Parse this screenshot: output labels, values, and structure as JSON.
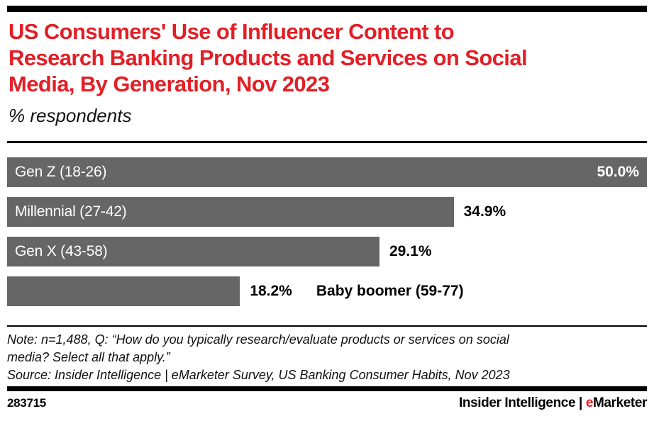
{
  "header": {
    "title_lines": [
      "US Consumers' Use of Influencer Content to",
      "Research Banking Products and Services on Social",
      "Media, By Generation, Nov 2023"
    ],
    "subtitle": "% respondents"
  },
  "chart_data": {
    "type": "bar",
    "orientation": "horizontal",
    "title": "US Consumers' Use of Influencer Content to Research Banking Products and Services on Social Media, By Generation, Nov 2023",
    "unit_label": "% respondents",
    "categories": [
      "Gen Z (18-26)",
      "Millennial (27-42)",
      "Gen X (43-58)",
      "Baby boomer (59-77)"
    ],
    "values": [
      50.0,
      34.9,
      29.1,
      18.2
    ],
    "value_labels": [
      "50.0%",
      "34.9%",
      "29.1%",
      "18.2%"
    ],
    "xlim": [
      0,
      50
    ],
    "xlabel": "",
    "ylabel": "",
    "grid": false,
    "legend": false,
    "bar_color": "#666666",
    "label_position": [
      "inside",
      "inside",
      "inside",
      "outside"
    ],
    "value_position": [
      "inside",
      "outside",
      "outside",
      "outside"
    ]
  },
  "notes": {
    "note_lines": [
      "Note: n=1,488, Q: “How do you typically research/evaluate products or services on social",
      "media? Select all that apply.”"
    ],
    "source_line": "Source: Insider Intelligence | eMarketer Survey, US Banking Consumer Habits, Nov 2023"
  },
  "footer": {
    "chart_id": "283715",
    "brand_prefix": "Insider Intelligence | ",
    "brand_e": "e",
    "brand_rest": "Marketer"
  },
  "colors": {
    "title_red": "#e21f26",
    "brand_e_red": "#e21f26",
    "bar_gray": "#666666",
    "rule_black": "#000000"
  }
}
